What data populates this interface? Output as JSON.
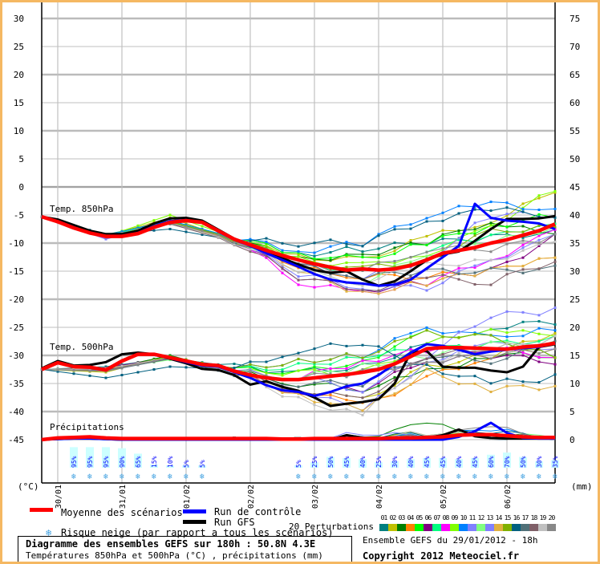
{
  "chart_data": {
    "type": "line",
    "title": "Diagramme des ensembles GEFS sur 180h : 50.8N 4.3E",
    "subtitle": "Températures 850hPa et 500hPa (°C) , précipitations (mm)",
    "run_info": "Ensemble GEFS du 29/01/2012 - 18h",
    "copyright": "Copyright 2012 Meteociel.fr",
    "time_step_hours": 6,
    "x_tick_labels": [
      "30/01",
      "31/01",
      "01/02",
      "02/02",
      "03/02",
      "04/02",
      "05/02",
      "06/02"
    ],
    "left_axis": {
      "unit": "(°C)",
      "range": [
        -45,
        30
      ],
      "ticks": [
        "30",
        "25",
        "20",
        "15",
        "10",
        "5",
        "0",
        "-5",
        "-10",
        "-15",
        "-20",
        "-25",
        "-30",
        "-35",
        "-40",
        "-45"
      ]
    },
    "right_axis": {
      "unit": "(mm)",
      "range": [
        0,
        75
      ],
      "ticks": [
        "75",
        "70",
        "65",
        "60",
        "55",
        "50",
        "45",
        "40",
        "35",
        "30",
        "25",
        "20",
        "15",
        "10",
        "5",
        "0"
      ]
    },
    "panel_labels": {
      "t850": "Temp. 850hPa",
      "t500": "Temp. 500hPa",
      "precip": "Précipitations"
    },
    "mean": {
      "t850": [
        -5.3,
        -6.2,
        -7.3,
        -8.2,
        -8.8,
        -8.8,
        -8.3,
        -7.2,
        -6.3,
        -6.0,
        -6.3,
        -7.8,
        -9.3,
        -10.3,
        -11.3,
        -12.2,
        -13.0,
        -13.7,
        -14.3,
        -14.8,
        -14.6,
        -14.8,
        -14.6,
        -14.0,
        -13.0,
        -11.8,
        -11.3,
        -10.8,
        -10.0,
        -9.4,
        -8.6,
        -7.8,
        -6.6
      ],
      "t500": [
        -32.5,
        -31.3,
        -32.0,
        -32.1,
        -32.6,
        -31.0,
        -29.8,
        -29.8,
        -30.4,
        -31.0,
        -31.6,
        -31.8,
        -32.8,
        -33.5,
        -34.0,
        -34.3,
        -34.3,
        -34.0,
        -33.7,
        -33.4,
        -33.0,
        -32.5,
        -31.5,
        -30.2,
        -28.8,
        -28.6,
        -28.6,
        -28.7,
        -28.8,
        -28.9,
        -28.5,
        -28.3,
        -27.8
      ],
      "precip": [
        0,
        0.3,
        0.4,
        0.5,
        0.3,
        0.2,
        0.2,
        0.2,
        0.2,
        0.2,
        0.2,
        0.2,
        0.2,
        0.2,
        0.2,
        0.1,
        0.1,
        0.2,
        0.2,
        0.2,
        0.2,
        0.2,
        0.3,
        0.3,
        0.4,
        0.5,
        0.8,
        0.9,
        0.9,
        0.7,
        0.5,
        0.4,
        0.4
      ]
    },
    "control": {
      "t850": [
        -5.3,
        -6.1,
        -7.2,
        -8.2,
        -8.8,
        -8.8,
        -8.2,
        -7.0,
        -6.1,
        -5.9,
        -6.3,
        -7.9,
        -9.4,
        -10.5,
        -11.8,
        -13.0,
        -14.2,
        -15.5,
        -16.5,
        -17.0,
        -17.2,
        -17.6,
        -17.4,
        -16.5,
        -14.5,
        -12.5,
        -10.5,
        -3.0,
        -5.5,
        -6.0,
        -6.2,
        -6.5,
        -7.5
      ],
      "t500": [
        -32.5,
        -31.2,
        -32.0,
        -32.1,
        -32.6,
        -31.0,
        -29.8,
        -29.9,
        -30.5,
        -31.2,
        -31.8,
        -32.0,
        -33.0,
        -34.0,
        -35.3,
        -36.2,
        -36.5,
        -37.2,
        -36.5,
        -35.5,
        -35.0,
        -33.5,
        -31.5,
        -29.5,
        -28.0,
        -28.3,
        -29.0,
        -29.8,
        -29.3,
        -29.0,
        -28.7,
        -28.5,
        -27.8
      ],
      "precip": [
        0,
        0.1,
        0.2,
        0.2,
        0.1,
        0,
        0,
        0,
        0,
        0,
        0,
        0,
        0,
        0,
        0,
        0,
        0,
        0,
        0,
        0,
        0,
        0,
        0,
        0,
        0,
        0,
        0.5,
        1.5,
        3.0,
        1.2,
        0.3,
        0.2,
        0.2
      ]
    },
    "gfs": {
      "t850": [
        -5.3,
        -5.8,
        -6.8,
        -7.8,
        -8.4,
        -8.4,
        -7.8,
        -6.5,
        -5.6,
        -5.5,
        -6.0,
        -7.6,
        -9.2,
        -10.4,
        -11.6,
        -12.7,
        -13.8,
        -14.8,
        -15.3,
        -15.0,
        -16.5,
        -17.6,
        -16.8,
        -15.0,
        -13.0,
        -12.0,
        -11.5,
        -9.6,
        -7.5,
        -5.7,
        -5.7,
        -5.6,
        -5.2
      ],
      "t500": [
        -32.3,
        -31.0,
        -31.8,
        -31.7,
        -31.2,
        -29.8,
        -29.5,
        -29.8,
        -30.6,
        -31.4,
        -32.4,
        -32.6,
        -33.5,
        -35.2,
        -34.6,
        -35.6,
        -36.3,
        -37.5,
        -39.0,
        -38.6,
        -38.3,
        -37.8,
        -35.0,
        -29.5,
        -29.2,
        -32.0,
        -32.2,
        -32.2,
        -32.7,
        -33.0,
        -32.0,
        -28.5,
        -28.0
      ],
      "precip": [
        0,
        0.1,
        0.2,
        0.2,
        0.1,
        0,
        0,
        0,
        0,
        0,
        0,
        0,
        0,
        0,
        0,
        0,
        0,
        0,
        0,
        0.8,
        0.3,
        0.2,
        0.2,
        0.2,
        0.3,
        0.8,
        1.8,
        0.6,
        0.3,
        0.2,
        0.2,
        0.2,
        0.2
      ]
    },
    "perturbations_knot_step": 4,
    "perturbations": [
      {
        "id": "01",
        "color": "#008080",
        "t850": [
          -5.3,
          -8.5,
          -6,
          -9,
          -12,
          -11,
          -10,
          -9,
          -8
        ],
        "t500": [
          -32.5,
          -32,
          -30.5,
          -32,
          -33,
          -32,
          -28,
          -25,
          -24
        ],
        "precip": [
          0,
          0.3,
          0,
          0,
          0,
          0.8,
          0.5,
          0.6,
          0.3
        ]
      },
      {
        "id": "02",
        "color": "#c0c000",
        "t850": [
          -5.3,
          -8.7,
          -5.5,
          -9.5,
          -12.5,
          -13,
          -9,
          -6,
          -1
        ],
        "t500": [
          -32.5,
          -33,
          -30,
          -33,
          -36,
          -38,
          -32,
          -30,
          -26
        ],
        "precip": [
          0,
          0.2,
          0,
          0,
          0,
          0.3,
          0.5,
          0.4,
          0.2
        ]
      },
      {
        "id": "03",
        "color": "#008000",
        "t850": [
          -5.3,
          -9,
          -6.2,
          -9.2,
          -13,
          -12,
          -10,
          -6,
          -9
        ],
        "t500": [
          -32.5,
          -32.5,
          -30,
          -33,
          -35,
          -36,
          -33,
          -30,
          -30
        ],
        "precip": [
          0,
          0.3,
          0,
          0,
          0,
          0.6,
          3.5,
          1,
          0.4
        ]
      },
      {
        "id": "04",
        "color": "#ff8000",
        "t850": [
          -5.3,
          -8.8,
          -6.5,
          -9.6,
          -14.5,
          -16,
          -16,
          -15,
          -12
        ],
        "t500": [
          -32.5,
          -32.5,
          -30.5,
          -33,
          -36,
          -39,
          -34,
          -30,
          -29
        ],
        "precip": [
          0,
          0.2,
          0,
          0,
          0,
          0.2,
          0.4,
          0.5,
          0.2
        ]
      },
      {
        "id": "05",
        "color": "#00ff00",
        "t850": [
          -5.3,
          -8.6,
          -6,
          -9,
          -12,
          -13,
          -10,
          -7,
          -5
        ],
        "t500": [
          -32.5,
          -32.8,
          -30.2,
          -32.5,
          -33,
          -31,
          -26,
          -27,
          -30
        ],
        "precip": [
          0,
          0.3,
          0,
          0,
          0,
          0.4,
          0.6,
          0.8,
          0.6
        ]
      },
      {
        "id": "06",
        "color": "#800080",
        "t850": [
          -5.3,
          -9,
          -6.2,
          -9.5,
          -16,
          -18.5,
          -17,
          -15,
          -9
        ],
        "t500": [
          -32.5,
          -32.2,
          -30.4,
          -33,
          -37,
          -36,
          -31,
          -30,
          -31
        ],
        "precip": [
          0,
          0.2,
          0,
          0,
          0,
          0.3,
          0.3,
          0.9,
          0.2
        ]
      },
      {
        "id": "07",
        "color": "#00ff80",
        "t850": [
          -5.3,
          -8.7,
          -6.3,
          -9.3,
          -13.5,
          -15,
          -11,
          -9,
          -6
        ],
        "t500": [
          -32.5,
          -32.6,
          -30.6,
          -32.5,
          -32,
          -30,
          -29,
          -28,
          -27
        ],
        "precip": [
          0,
          0.2,
          0,
          0,
          0,
          0.3,
          0.4,
          0.4,
          0.3
        ]
      },
      {
        "id": "08",
        "color": "#ff00ff",
        "t850": [
          -5.3,
          -9.2,
          -6.4,
          -9.4,
          -17,
          -19,
          -17,
          -13,
          -8
        ],
        "t500": [
          -32.5,
          -32.4,
          -30.6,
          -33,
          -34,
          -31,
          -29,
          -29,
          -30
        ],
        "precip": [
          0,
          0.3,
          0,
          0,
          0,
          0.2,
          0.5,
          0.6,
          0.2
        ]
      },
      {
        "id": "09",
        "color": "#80ff00",
        "t850": [
          -5.3,
          -8.8,
          -5,
          -9,
          -13,
          -14,
          -12,
          -7,
          -0.5
        ],
        "t500": [
          -32.5,
          -32.6,
          -30.3,
          -33,
          -33,
          -33,
          -28,
          -25,
          -27
        ],
        "precip": [
          0,
          0.2,
          0,
          0,
          0,
          0.5,
          1.2,
          0.6,
          0.3
        ]
      },
      {
        "id": "10",
        "color": "#0080ff",
        "t850": [
          -5.3,
          -8.6,
          -6,
          -9,
          -11.5,
          -10,
          -5,
          -3,
          -4
        ],
        "t500": [
          -32.5,
          -32.4,
          -30.5,
          -32.5,
          -31,
          -30,
          -25,
          -27,
          -25
        ],
        "precip": [
          0,
          0.3,
          0,
          0,
          0,
          0.6,
          0.8,
          2.2,
          0.4
        ]
      },
      {
        "id": "11",
        "color": "#8080ff",
        "t850": [
          -5.3,
          -9.1,
          -6.5,
          -9.4,
          -14,
          -16,
          -13,
          -5,
          -5
        ],
        "t500": [
          -32.5,
          -32.8,
          -30.5,
          -33,
          -36,
          -40,
          -31,
          -28,
          -29
        ],
        "precip": [
          0,
          0.3,
          0,
          0,
          0,
          1.5,
          0.6,
          0.5,
          0.2
        ]
      },
      {
        "id": "12",
        "color": "#80ff80",
        "t850": [
          -5.3,
          -8.9,
          -6.3,
          -9.5,
          -15,
          -17,
          -12,
          -10,
          -7
        ],
        "t500": [
          -32.5,
          -32.4,
          -30.8,
          -33,
          -34,
          -32,
          -30,
          -28,
          -28
        ],
        "precip": [
          0,
          0.2,
          0,
          0,
          0,
          0.3,
          0.4,
          0.5,
          1.0
        ]
      },
      {
        "id": "13",
        "color": "#8080ff",
        "t850": [
          -5.3,
          -9.3,
          -6.4,
          -9.6,
          -15.5,
          -18,
          -18,
          -13,
          -9
        ],
        "t500": [
          -32.5,
          -32.7,
          -30.4,
          -32.8,
          -34,
          -36,
          -30,
          -23,
          -22
        ],
        "precip": [
          0,
          0.3,
          0,
          0,
          0,
          0.4,
          0.3,
          0.4,
          0.2
        ]
      },
      {
        "id": "14",
        "color": "#e0b040",
        "t850": [
          -5.3,
          -9,
          -6.5,
          -9.4,
          -15,
          -19,
          -17,
          -15,
          -12
        ],
        "t500": [
          -32.5,
          -32.3,
          -30.6,
          -33.2,
          -37,
          -40,
          -33,
          -36,
          -35.5
        ],
        "precip": [
          0,
          0.2,
          0,
          0,
          0,
          0.2,
          0.6,
          0.5,
          0.3
        ]
      },
      {
        "id": "15",
        "color": "#80b000",
        "t850": [
          -5.3,
          -8.9,
          -6.2,
          -9.2,
          -13.5,
          -14.5,
          -13,
          -8,
          -7
        ],
        "t500": [
          -32.5,
          -32.6,
          -30.2,
          -32.5,
          -31,
          -30,
          -26,
          -27,
          -30
        ],
        "precip": [
          0,
          0.3,
          0,
          0,
          0,
          0.5,
          1.5,
          0.6,
          0.3
        ]
      },
      {
        "id": "16",
        "color": "#006080",
        "t850": [
          -5.3,
          -8.5,
          -7.5,
          -9.5,
          -10,
          -10,
          -6,
          -4,
          -5
        ],
        "t500": [
          -32.5,
          -34,
          -32,
          -32.5,
          -29,
          -28,
          -32,
          -35,
          -34
        ],
        "precip": [
          0,
          0.2,
          0,
          0,
          0,
          0.8,
          1.2,
          1.8,
          0.4
        ]
      },
      {
        "id": "17",
        "color": "#507078",
        "t850": [
          -5.3,
          -8.7,
          -6.6,
          -9.6,
          -14,
          -16,
          -15,
          -15,
          -14.5
        ],
        "t500": [
          -32.5,
          -32.8,
          -30.6,
          -33.4,
          -35,
          -35,
          -30,
          -31,
          -28
        ],
        "precip": [
          0,
          0.3,
          0,
          0,
          0,
          0.3,
          0.4,
          0.4,
          0.2
        ]
      },
      {
        "id": "18",
        "color": "#806068",
        "t850": [
          -5.3,
          -8.8,
          -6.6,
          -9.8,
          -16,
          -18.5,
          -16,
          -17,
          -13
        ],
        "t500": [
          -32.5,
          -32.6,
          -30.5,
          -33,
          -36,
          -38,
          -30,
          -29,
          -27
        ],
        "precip": [
          0,
          0.2,
          0,
          0,
          0,
          0.2,
          0.5,
          0.9,
          0.3
        ]
      },
      {
        "id": "19",
        "color": "#c0c0c0",
        "t850": [
          -5.3,
          -8.9,
          -6.4,
          -9.7,
          -15,
          -17,
          -14,
          -13,
          -10
        ],
        "t500": [
          -32.5,
          -32.4,
          -30.4,
          -33,
          -38,
          -40.5,
          -31,
          -29,
          -27
        ],
        "precip": [
          0,
          0.3,
          0,
          0,
          0,
          0.3,
          1.5,
          0.5,
          0.3
        ]
      },
      {
        "id": "20",
        "color": "#888888",
        "t850": [
          -5.3,
          -9,
          -6.4,
          -9.3,
          -14,
          -15,
          -11,
          -11,
          -9
        ],
        "t500": [
          -32.5,
          -32.8,
          -30.4,
          -33.2,
          -34,
          -33,
          -31,
          -30,
          -29
        ],
        "precip": [
          0,
          0.3,
          0,
          0,
          0,
          0.4,
          0.6,
          2.8,
          0.3
        ]
      }
    ],
    "snow_risk_pct": [
      null,
      null,
      95,
      95,
      95,
      90,
      65,
      15,
      10,
      5,
      5,
      null,
      null,
      null,
      null,
      null,
      5,
      25,
      50,
      45,
      40,
      25,
      30,
      40,
      45,
      45,
      40,
      45,
      60,
      70,
      50,
      30,
      35
    ],
    "colors": {
      "mean": "#ff0000",
      "control": "#0000ff",
      "gfs": "#000000",
      "snow_bar": "#ccffff",
      "snow_text": "#0000ff",
      "border": "#f5b862",
      "grid": "#c0c0c0"
    }
  },
  "legend": {
    "mean": "Moyenne des scénarios",
    "control": "Run de contrôle",
    "gfs": "Run GFS",
    "snow": "Risque neige (par rapport a tous les scénarios)",
    "perturbations": "20 Perturbations"
  }
}
